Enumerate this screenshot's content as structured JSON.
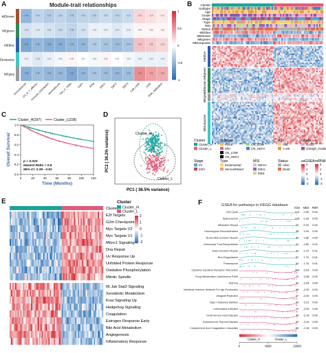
{
  "panelA": {
    "label": "A",
    "title": "Module-trait relationships",
    "rows": [
      "MEbrown",
      "MEgreen",
      "MEblue",
      "MEturquoise",
      "MEgrey"
    ],
    "row_colors": [
      "#a0522d",
      "#2e8b57",
      "#2b5fb0",
      "#3cc8c8",
      "#9a9a9a"
    ],
    "cols": [
      "ImmuneScore",
      "CD_8_T_effector",
      "Immune_Checkpoint",
      "StromalScore",
      "Pan_F_TBRs",
      "CaFs",
      "APM",
      "EMT1",
      "EMT2",
      "EMT3",
      "Cell_cycle",
      "DDR",
      "DNA_replication"
    ],
    "legend": [
      "1",
      "0.5",
      "0",
      "-0.5",
      "-1"
    ]
  },
  "panelB": {
    "label": "B",
    "rows": [
      "Cluster",
      "Subtype",
      "Age",
      "Grade",
      "Stage",
      "Type",
      "MSI",
      "Status",
      "MEblue",
      "MEbrown",
      "MEgreen",
      "MEturquoise"
    ],
    "gene_blocks": [
      "MEblue",
      "MEbrown MEgreen",
      "MEgrey",
      "MEturquoise"
    ],
    "legend": {
      "cluster": {
        "title": "Cluster",
        "items": [
          "Cluster_H",
          "Cluster_L"
        ]
      },
      "subtype": {
        "title": "Subtype",
        "items": [
          "POLE",
          "MSI",
          "CN_LOW",
          "CN_HIGH"
        ]
      },
      "age": {
        "title": "Age",
        "items": [
          "<65",
          ">=65"
        ]
      },
      "grade": {
        "title": "Grade",
        "items": [
          "G1G2",
          "G3High_Grade"
        ]
      },
      "stage": {
        "title": "Stage",
        "items": [
          "I/II",
          "III/IV"
        ]
      },
      "type": {
        "title": "Type",
        "items": [
          "Endometrial",
          "Serous/Mixed"
        ]
      },
      "msi": {
        "title": "MSI",
        "items": [
          "MSI-H",
          "MSI-L",
          "MSS"
        ]
      },
      "status": {
        "title": "Status",
        "items": [
          "Alive",
          "Dead"
        ]
      },
      "ssgsea": {
        "title": "ssGSEA",
        "ticks": [
          "2",
          "1",
          "0",
          "-1",
          "-2"
        ]
      },
      "mrna": {
        "title": "mRNA",
        "ticks": [
          "2",
          "1",
          "0",
          "-1",
          "-2"
        ]
      }
    }
  },
  "panelC": {
    "label": "C",
    "legend": [
      "Cluster_H(297)",
      "Cluster_L(228)"
    ],
    "ylabel": "Overall Survival",
    "xlabel": "Time (Months)",
    "stats": [
      "p = 0.023",
      "Hazard Ratio = 0.6",
      "95% CI: 0.39 - 0.91"
    ],
    "x_ticks": [
      "0",
      "20",
      "40",
      "60",
      "80",
      "100",
      "120"
    ],
    "y_ticks": [
      "1.0",
      "0.8",
      "0.6",
      "0.4",
      "0.2",
      "0.0"
    ]
  },
  "panelD": {
    "label": "D",
    "xlabel": "PC1 ( 38.5% variance)",
    "ylabel": "PC2 ( 36.2% variance)",
    "annot_h": "Cluster_H",
    "annot_l": "Cluster_L"
  },
  "panelE": {
    "label": "E",
    "legend_title": "Cluster",
    "legend_items": [
      "Cluster_H",
      "Cluster_L"
    ],
    "scale": [
      "2",
      "1",
      "0",
      "-1",
      "-2"
    ],
    "row_label_top": "Cluster",
    "pathways": [
      "E2f Targets",
      "G2m Checkpoint",
      "Myc Targets V2",
      "Myc Targets V1",
      "Mtorc1 Signaling",
      "Dna Repair",
      "Uv Response Up",
      "Unfolded Protein Response",
      "Oxidative Phosphorylation",
      "Mitotic Spindle",
      "Il6 Jak Stat3 Signaling",
      "Xenobiotic Metabolism",
      "Kras Signaling Up",
      "Hedgehog Signaling",
      "Coagulation",
      "Estrogen Response Early",
      "Bile Acid Metabolism",
      "Angiogenesis",
      "Inflammatory Response"
    ]
  },
  "panelF": {
    "label": "F",
    "title": "GSEA for pathways in KEGG database",
    "col_headers": [
      "Size",
      "NES",
      "FDR"
    ],
    "rows": [
      {
        "name": "Cell Cycle",
        "size": "124",
        "nes": "2.55",
        "fdr": "0.00"
      },
      {
        "name": "Spliceosome",
        "size": "126",
        "nes": "2.33",
        "fdr": "0.00"
      },
      {
        "name": "Mismatch Repair",
        "size": "23",
        "nes": "2.00",
        "fdr": "0.00"
      },
      {
        "name": "Homologous Recombination",
        "size": "28",
        "nes": "1.94",
        "fdr": "0.00"
      },
      {
        "name": "Nucleotide Excision Repair",
        "size": "44",
        "nes": "1.86",
        "fdr": "0.00"
      },
      {
        "name": "Aminoacyl Trna Biosynthesis",
        "size": "41",
        "nes": "1.80",
        "fdr": "0.01"
      },
      {
        "name": "Base Excision Repair",
        "size": "33",
        "nes": "1.79",
        "fdr": "0.01"
      },
      {
        "name": "Rna Degradation",
        "size": "57",
        "nes": "1.79",
        "fdr": "0.01"
      },
      {
        "name": "Proteasome",
        "size": "44",
        "nes": "1.76",
        "fdr": "0.01"
      },
      {
        "name": "Cytokine Cytokine Receptor Interaction",
        "size": "263",
        "nes": "-2.61",
        "fdr": "0.00"
      },
      {
        "name": "Drug Metabolism Cytochrome P450",
        "size": "70",
        "nes": "-2.48",
        "fdr": "0.00"
      },
      {
        "name": "Asthma",
        "size": "30",
        "nes": "-2.44",
        "fdr": "0.00"
      },
      {
        "name": "Intestinal Immune Network For Iga Production",
        "size": "48",
        "nes": "-2.32",
        "fdr": "0.00"
      },
      {
        "name": "Allograft Rejection",
        "size": "37",
        "nes": "-2.30",
        "fdr": "0.00"
      },
      {
        "name": "Type I Diabetes Mellitus",
        "size": "43",
        "nes": "-2.21",
        "fdr": "0.00"
      },
      {
        "name": "Leishmania Infection",
        "size": "70",
        "nes": "-2.20",
        "fdr": "0.00"
      },
      {
        "name": "Graft Versus Host Disease",
        "size": "38",
        "nes": "-2.19",
        "fdr": "0.00"
      },
      {
        "name": "Autoimmune Thyroid Disease",
        "size": "52",
        "nes": "-2.19",
        "fdr": "0.00"
      },
      {
        "name": "Complement And Coagulation Cascades",
        "size": "69",
        "nes": "-2.16",
        "fdr": "0.00"
      }
    ],
    "xlabel_h": "Cluster_H",
    "xlabel_l": "Cluster_L",
    "x_ticks": [
      "0",
      "8000",
      "16000"
    ]
  }
}
